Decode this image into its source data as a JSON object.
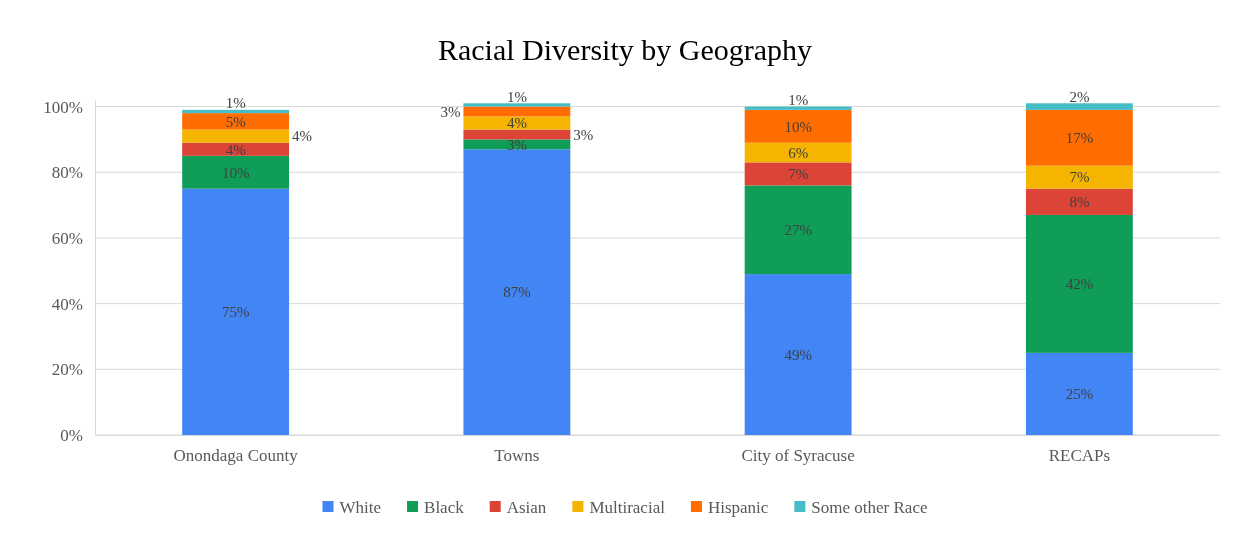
{
  "chart_data": {
    "type": "bar",
    "title": "Racial Diversity by Geography",
    "categories": [
      "Onondaga County",
      "Towns",
      "City of Syracuse",
      "RECAPs"
    ],
    "stacked": true,
    "ylim": [
      0,
      102
    ],
    "yticks": [
      {
        "value": 0,
        "label": "0%"
      },
      {
        "value": 20,
        "label": "20%"
      },
      {
        "value": 40,
        "label": "40%"
      },
      {
        "value": 60,
        "label": "60%"
      },
      {
        "value": 80,
        "label": "80%"
      },
      {
        "value": 100,
        "label": "100%"
      }
    ],
    "grid": "y",
    "legend": "bottom",
    "series": [
      {
        "name": "White",
        "color": "#4285f4",
        "values": [
          75,
          87,
          49,
          25
        ],
        "value_labels": [
          "75%",
          "87%",
          "49%",
          "25%"
        ]
      },
      {
        "name": "Black",
        "color": "#0f9d58",
        "values": [
          10,
          3,
          27,
          42
        ],
        "value_labels": [
          "10%",
          "3%",
          "27%",
          "42%"
        ]
      },
      {
        "name": "Asian",
        "color": "#db4437",
        "values": [
          4,
          3,
          7,
          8
        ],
        "value_labels": [
          "4%",
          "3%",
          "7%",
          "8%"
        ]
      },
      {
        "name": "Multiracial",
        "color": "#f4b400",
        "values": [
          4,
          4,
          6,
          7
        ],
        "value_labels": [
          "4%",
          "4%",
          "6%",
          "7%"
        ]
      },
      {
        "name": "Hispanic",
        "color": "#ff6d01",
        "values": [
          5,
          3,
          10,
          17
        ],
        "value_labels": [
          "5%",
          "3%",
          "10%",
          "17%"
        ]
      },
      {
        "name": "Some other Race",
        "color": "#46bdc6",
        "values": [
          1,
          1,
          1,
          2
        ],
        "value_labels": [
          "1%",
          "1%",
          "1%",
          "2%"
        ]
      }
    ]
  }
}
